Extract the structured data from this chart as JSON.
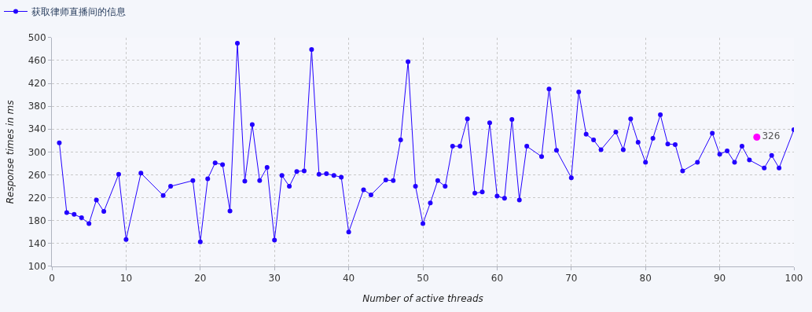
{
  "chart_data": {
    "type": "line",
    "xlabel": "Number of active threads",
    "ylabel": "Response times in ms",
    "xlim": [
      0,
      100
    ],
    "xticks": [
      0,
      10,
      20,
      30,
      40,
      50,
      60,
      70,
      80,
      90,
      100
    ],
    "ylim": [
      100,
      500
    ],
    "yticks": [
      100,
      140,
      180,
      220,
      260,
      300,
      340,
      380,
      420,
      460,
      500
    ],
    "grid": true,
    "legend": "top left",
    "marker": "circle",
    "line_style": "solid",
    "series": [
      {
        "name": "获取律师直播间的信息",
        "color": "#2200ff",
        "x": [
          1,
          2,
          3,
          4,
          5,
          6,
          7,
          9,
          10,
          12,
          15,
          16,
          19,
          20,
          21,
          22,
          23,
          24,
          25,
          26,
          27,
          28,
          29,
          30,
          31,
          32,
          33,
          34,
          35,
          36,
          37,
          38,
          39,
          40,
          42,
          43,
          45,
          46,
          47,
          48,
          49,
          50,
          51,
          52,
          53,
          54,
          55,
          56,
          57,
          58,
          59,
          60,
          61,
          62,
          63,
          64,
          66,
          67,
          68,
          70,
          71,
          72,
          73,
          74,
          76,
          77,
          78,
          79,
          80,
          81,
          82,
          83,
          84,
          85,
          87,
          89,
          90,
          91,
          92,
          93,
          94,
          96,
          97,
          98,
          100
        ],
        "values": [
          316,
          194,
          191,
          185,
          175,
          216,
          196,
          261,
          147,
          263,
          224,
          240,
          250,
          143,
          253,
          281,
          278,
          197,
          490,
          249,
          348,
          250,
          273,
          146,
          259,
          240,
          266,
          267,
          479,
          261,
          262,
          259,
          256,
          160,
          234,
          225,
          251,
          250,
          321,
          458,
          240,
          175,
          211,
          250,
          240,
          310,
          310,
          358,
          228,
          230,
          351,
          223,
          219,
          357,
          216,
          310,
          292,
          410,
          303,
          255,
          405,
          331,
          321,
          304,
          335,
          304,
          358,
          317,
          282,
          324,
          365,
          314,
          313,
          267,
          282,
          333,
          296,
          302,
          282,
          310,
          286,
          272,
          294,
          272,
          339
        ]
      },
      {
        "type": "scatter",
        "color": "#ff00ff",
        "x": [
          95
        ],
        "values": [
          326
        ],
        "value_labels": [
          "326"
        ]
      }
    ]
  }
}
